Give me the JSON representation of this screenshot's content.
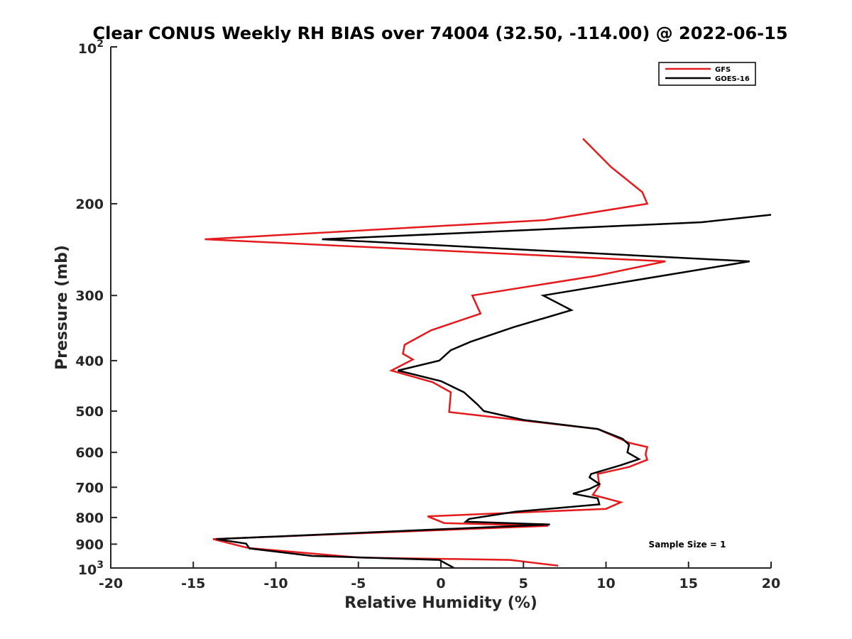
{
  "chart_data": {
    "type": "line",
    "title": "Clear CONUS Weekly RH BIAS over 74004 (32.50, -114.00) @ 2022-06-15",
    "xlabel": "Relative Humidity (%)",
    "ylabel": "Pressure (mb)",
    "xlim": [
      -20,
      20
    ],
    "ylim": [
      100,
      1000
    ],
    "yscale": "log",
    "y_reversed": true,
    "grid": false,
    "legend_position": "top-right",
    "x_ticks": [
      "-20",
      "-15",
      "-10",
      "-5",
      "0",
      "5",
      "10",
      "15",
      "20"
    ],
    "x_tick_values": [
      -20,
      -15,
      -10,
      -5,
      0,
      5,
      10,
      15,
      20
    ],
    "y_ticks": [
      {
        "value": 100,
        "base": "10",
        "exp": "2"
      },
      {
        "value": 200,
        "label": "200"
      },
      {
        "value": 300,
        "label": "300"
      },
      {
        "value": 400,
        "label": "400"
      },
      {
        "value": 500,
        "label": "500"
      },
      {
        "value": 600,
        "label": "600"
      },
      {
        "value": 700,
        "label": "700"
      },
      {
        "value": 800,
        "label": "800"
      },
      {
        "value": 900,
        "label": "900"
      },
      {
        "value": 1000,
        "base": "10",
        "exp": "3"
      }
    ],
    "annotation": "Sample Size = 1",
    "series": [
      {
        "name": "GFS",
        "color": "#e41a1c",
        "points": [
          [
            8.6,
            150
          ],
          [
            10.3,
            170
          ],
          [
            12.2,
            190
          ],
          [
            12.5,
            200
          ],
          [
            6.3,
            215
          ],
          [
            -14.3,
            234
          ],
          [
            13.6,
            258
          ],
          [
            9.4,
            275
          ],
          [
            1.9,
            300
          ],
          [
            2.4,
            325
          ],
          [
            -0.6,
            350
          ],
          [
            -2.2,
            373
          ],
          [
            -2.3,
            388
          ],
          [
            -1.7,
            398
          ],
          [
            -3.0,
            418
          ],
          [
            -0.5,
            440
          ],
          [
            0.6,
            460
          ],
          [
            0.5,
            502
          ],
          [
            9.5,
            541
          ],
          [
            11.4,
            575
          ],
          [
            12.5,
            586
          ],
          [
            12.4,
            605
          ],
          [
            12.5,
            620
          ],
          [
            11.4,
            640
          ],
          [
            9.5,
            660
          ],
          [
            9.6,
            695
          ],
          [
            9.2,
            724
          ],
          [
            10.9,
            748
          ],
          [
            10.0,
            770
          ],
          [
            -0.8,
            796
          ],
          [
            0.2,
            820
          ],
          [
            6.5,
            830
          ],
          [
            -13.8,
            880
          ],
          [
            -11.7,
            915
          ],
          [
            -5.0,
            955
          ],
          [
            4.2,
            965
          ],
          [
            7.1,
            990
          ]
        ]
      },
      {
        "name": "GOES-16",
        "color": "#000000",
        "points": [
          [
            20.0,
            210
          ],
          [
            15.8,
            217
          ],
          [
            -7.2,
            234
          ],
          [
            18.7,
            258
          ],
          [
            6.2,
            300
          ],
          [
            7.9,
            320
          ],
          [
            4.4,
            345
          ],
          [
            1.8,
            368
          ],
          [
            0.6,
            382
          ],
          [
            -0.1,
            400
          ],
          [
            -2.6,
            418
          ],
          [
            0.0,
            438
          ],
          [
            1.4,
            460
          ],
          [
            2.2,
            485
          ],
          [
            2.6,
            500
          ],
          [
            5.0,
            520
          ],
          [
            9.5,
            541
          ],
          [
            11.0,
            565
          ],
          [
            11.4,
            580
          ],
          [
            11.3,
            600
          ],
          [
            12.0,
            618
          ],
          [
            10.9,
            635
          ],
          [
            9.1,
            660
          ],
          [
            9.0,
            670
          ],
          [
            9.6,
            690
          ],
          [
            9.0,
            705
          ],
          [
            8.0,
            720
          ],
          [
            9.5,
            735
          ],
          [
            9.6,
            755
          ],
          [
            4.5,
            780
          ],
          [
            1.7,
            805
          ],
          [
            1.5,
            815
          ],
          [
            6.6,
            825
          ],
          [
            -13.6,
            880
          ],
          [
            -11.8,
            898
          ],
          [
            -11.6,
            917
          ],
          [
            -7.8,
            948
          ],
          [
            -0.1,
            965
          ],
          [
            0.8,
            1000
          ]
        ]
      }
    ]
  }
}
